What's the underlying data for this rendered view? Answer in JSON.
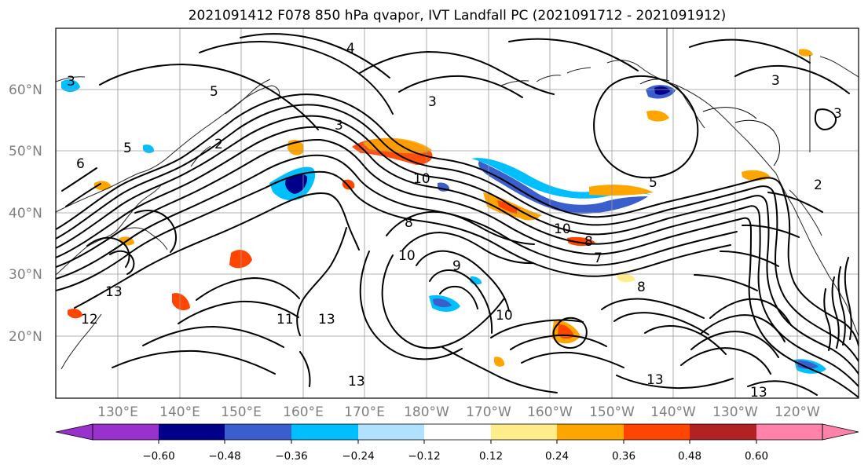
{
  "title": "2021091412 F078 850 hPa qvapor, IVT Landfall PC (2021091712 - 2021091912)",
  "map": {
    "lat_ticks": [
      "60°N",
      "50°N",
      "40°N",
      "30°N",
      "20°N"
    ],
    "lon_ticks": [
      "130°E",
      "140°E",
      "150°E",
      "160°E",
      "170°E",
      "180°W",
      "170°W",
      "160°W",
      "150°W",
      "140°W",
      "130°W",
      "120°W"
    ],
    "gridlines": "on",
    "coastlines": "on"
  },
  "contour_labels": [
    "4",
    "3",
    "5",
    "3",
    "3",
    "6",
    "5",
    "2",
    "3",
    "10",
    "8",
    "9",
    "10",
    "10",
    "8",
    "7",
    "13",
    "11",
    "12",
    "13",
    "13",
    "10",
    "8",
    "5",
    "13",
    "13",
    "3",
    "2"
  ],
  "colorbar": {
    "tick_labels": [
      "−0.60",
      "−0.48",
      "−0.36",
      "−0.24",
      "−0.12",
      "0.12",
      "0.24",
      "0.36",
      "0.48",
      "0.60"
    ],
    "colors": [
      "#9932cc",
      "#00008b",
      "#3a5fcd",
      "#00bfff",
      "#b0e2ff",
      "#ffffff",
      "#ffec8b",
      "#ffa500",
      "#ff4500",
      "#b22222",
      "#ff82ab"
    ],
    "extend": "both"
  }
}
